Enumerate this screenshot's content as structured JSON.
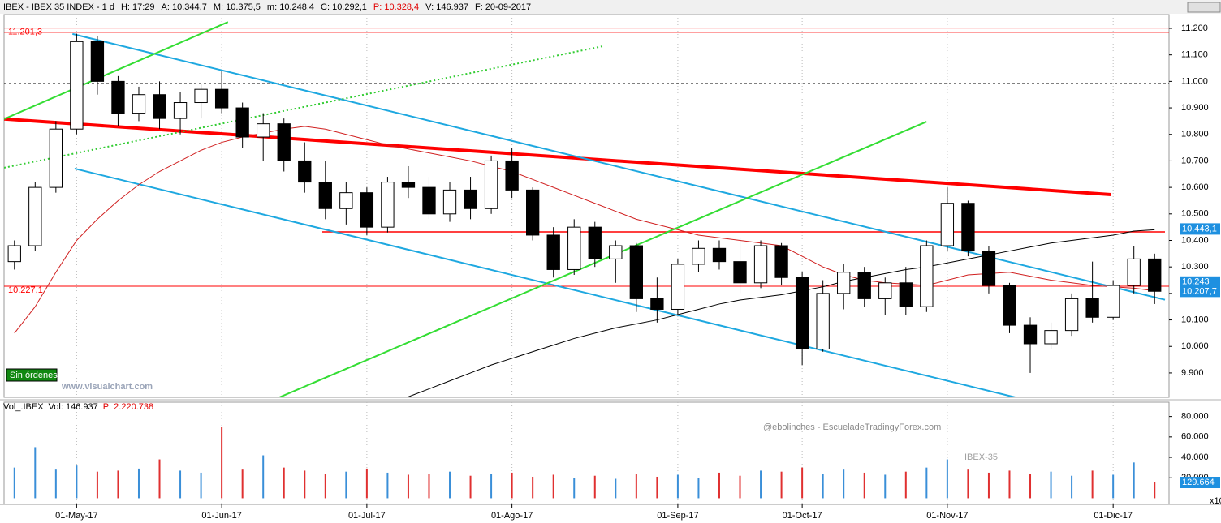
{
  "chart_data": {
    "type": "candlestick",
    "header": [
      "IBEX - IBEX 35 INDEX - 1 d",
      "H: 17:29",
      "A: 10.344,7",
      "M: 10.375,5",
      "m: 10.248,4",
      "C: 10.292,1",
      "P: 10.328,4",
      "V: 146.937",
      "F: 20-09-2017"
    ],
    "header_highlight": 6,
    "volume_header": [
      "Vol_.IBEX",
      "Vol: 146.937",
      "P: 2.220.738"
    ],
    "watermarks": [
      "@ebolinches - EscueladeTradingyForex.com",
      "IBEX-35",
      "www.visualchart.com"
    ],
    "status": "Sin órdenes",
    "volume_factor": "x10",
    "volume_last_label": "129.664",
    "categories": [
      null,
      null,
      null,
      "01-May-17",
      null,
      null,
      null,
      null,
      null,
      null,
      "01-Jun-17",
      null,
      null,
      null,
      null,
      null,
      null,
      "01-Jul-17",
      null,
      null,
      null,
      null,
      null,
      null,
      "01-Ago-17",
      null,
      null,
      null,
      null,
      null,
      null,
      null,
      "01-Sep-17",
      null,
      null,
      null,
      null,
      null,
      "01-Oct-17",
      null,
      null,
      null,
      null,
      null,
      null,
      "01-Nov-17",
      null,
      null,
      null,
      null,
      null,
      null,
      null,
      "01-Dic-17",
      null,
      null
    ],
    "open": [
      10320,
      10380,
      10600,
      10820,
      11150,
      11000,
      10880,
      10950,
      10860,
      10920,
      10970,
      10900,
      10790,
      10840,
      10700,
      10620,
      10520,
      10580,
      10450,
      10620,
      10600,
      10500,
      10590,
      10520,
      10700,
      10590,
      10420,
      10290,
      10450,
      10330,
      10380,
      10180,
      10140,
      10310,
      10370,
      10320,
      10240,
      10380,
      10260,
      9990,
      10200,
      10280,
      10180,
      10240,
      10150,
      10380,
      10540,
      10360,
      10230,
      10080,
      10010,
      10060,
      10180,
      10110,
      10230,
      10330
    ],
    "high": [
      10400,
      10620,
      10850,
      11180,
      11170,
      11020,
      10980,
      11000,
      10960,
      10990,
      11040,
      10920,
      10880,
      10860,
      10770,
      10700,
      10620,
      10600,
      10640,
      10680,
      10640,
      10620,
      10640,
      10720,
      10750,
      10600,
      10450,
      10480,
      10470,
      10400,
      10390,
      10260,
      10330,
      10400,
      10400,
      10410,
      10400,
      10390,
      10280,
      10250,
      10310,
      10300,
      10260,
      10300,
      10400,
      10600,
      10550,
      10380,
      10240,
      10110,
      10090,
      10200,
      10320,
      10250,
      10380,
      10350
    ],
    "low": [
      10290,
      10360,
      10580,
      10800,
      10950,
      10830,
      10850,
      10820,
      10800,
      10860,
      10880,
      10750,
      10700,
      10660,
      10580,
      10480,
      10460,
      10420,
      10430,
      10560,
      10480,
      10470,
      10480,
      10500,
      10560,
      10400,
      10260,
      10270,
      10300,
      10240,
      10130,
      10090,
      10120,
      10280,
      10290,
      10200,
      10220,
      10230,
      9930,
      9980,
      10140,
      10150,
      10120,
      10120,
      10130,
      10360,
      10340,
      10200,
      10050,
      9900,
      9990,
      10040,
      10090,
      10100,
      10200,
      10160
    ],
    "close": [
      10380,
      10600,
      10820,
      11150,
      11000,
      10880,
      10950,
      10860,
      10920,
      10970,
      10900,
      10790,
      10840,
      10700,
      10620,
      10520,
      10580,
      10450,
      10620,
      10600,
      10500,
      10590,
      10520,
      10700,
      10590,
      10420,
      10290,
      10450,
      10330,
      10380,
      10180,
      10140,
      10310,
      10370,
      10320,
      10240,
      10380,
      10260,
      9990,
      10200,
      10280,
      10180,
      10240,
      10150,
      10380,
      10540,
      10360,
      10230,
      10080,
      10010,
      10060,
      10180,
      10110,
      10230,
      10330,
      10208
    ],
    "volume": [
      30000,
      50000,
      28000,
      32000,
      26000,
      27000,
      29000,
      38000,
      27000,
      25000,
      70000,
      28000,
      42000,
      30000,
      27000,
      24000,
      26000,
      29000,
      25000,
      23000,
      24000,
      26000,
      22000,
      24000,
      25000,
      21000,
      23000,
      20000,
      22000,
      19000,
      24000,
      21000,
      23000,
      20000,
      25000,
      22000,
      27000,
      26000,
      30000,
      24000,
      28000,
      25000,
      23000,
      26000,
      30000,
      38000,
      28000,
      25000,
      27000,
      24000,
      26000,
      22000,
      27000,
      23000,
      35000,
      16000
    ],
    "up_color": "#ffffff",
    "down_color": "#000000",
    "vol_up_color": "#3a8fd8",
    "vol_down_color": "#e03030",
    "averages": [
      {
        "color": "#d02020",
        "values": [
          10050,
          10150,
          10280,
          10400,
          10480,
          10550,
          10610,
          10660,
          10700,
          10740,
          10770,
          10790,
          10805,
          10820,
          10830,
          10820,
          10800,
          10780,
          10760,
          10745,
          10730,
          10715,
          10700,
          10680,
          10660,
          10630,
          10600,
          10570,
          10540,
          10510,
          10480,
          10460,
          10440,
          10420,
          10410,
          10400,
          10390,
          10380,
          10340,
          10300,
          10270,
          10250,
          10240,
          10235,
          10230,
          10250,
          10270,
          10275,
          10280,
          10265,
          10250,
          10240,
          10230,
          10225,
          10220,
          10210
        ]
      },
      {
        "color": "#000000",
        "values": [
          null,
          null,
          null,
          null,
          null,
          null,
          null,
          null,
          null,
          null,
          null,
          null,
          null,
          null,
          null,
          null,
          null,
          null,
          null,
          9810,
          9840,
          9870,
          9900,
          9930,
          9955,
          9980,
          10005,
          10030,
          10050,
          10070,
          10085,
          10100,
          10120,
          10140,
          10160,
          10175,
          10185,
          10195,
          10210,
          10225,
          10245,
          10260,
          10275,
          10290,
          10300,
          10315,
          10330,
          10345,
          10360,
          10375,
          10390,
          10400,
          10410,
          10420,
          10435,
          10440
        ]
      }
    ],
    "trendlines": [
      {
        "color": "#ff0000",
        "width": 4,
        "x": [
          -0.5,
          52.9
        ],
        "y": [
          10858,
          10573
        ]
      },
      {
        "color": "#ff0000",
        "width": 1.5,
        "x": [
          14.85,
          55.5
        ],
        "y": [
          10432,
          10432
        ]
      },
      {
        "color": "#1ea8e0",
        "width": 2,
        "x": [
          2.8,
          55.5
        ],
        "y": [
          11179,
          10176
        ]
      },
      {
        "color": "#1ea8e0",
        "width": 2,
        "x": [
          2.9,
          48.6
        ],
        "y": [
          10671,
          9802
        ]
      },
      {
        "color": "#33dd33",
        "width": 2,
        "x": [
          -0.5,
          10.3
        ],
        "y": [
          10858,
          11224
        ]
      },
      {
        "color": "#33cc33",
        "width": 2,
        "dash": true,
        "x": [
          -0.5,
          28.4
        ],
        "y": [
          10674,
          11133
        ]
      },
      {
        "color": "#33dd33",
        "width": 2,
        "x": [
          12.6,
          44
        ],
        "y": [
          9802,
          10848
        ]
      }
    ],
    "hlines": [
      {
        "value": 11201.3,
        "label": "11.201,3",
        "color": "#ff0000"
      },
      {
        "value": 11185,
        "color": "#ff0000"
      },
      {
        "value": 10227.1,
        "label": "10.227,1",
        "color": "#ff0000"
      },
      {
        "value": 10992,
        "color": "#000000",
        "dash": true
      }
    ],
    "markers": [
      {
        "value": 10443.1,
        "label": "10.443,1"
      },
      {
        "value": 10243,
        "label": "10.243"
      },
      {
        "value": 10207.7,
        "label": "10.207,7"
      }
    ],
    "ylim": [
      9808,
      11252
    ],
    "yticks": [
      {
        "value": 9900,
        "label": "9.900"
      },
      {
        "value": 10000,
        "label": "10.000"
      },
      {
        "value": 10100,
        "label": "10.100"
      },
      {
        "value": 10200,
        "label": "10.200"
      },
      {
        "value": 10300,
        "label": "10.300"
      },
      {
        "value": 10400,
        "label": "10.400"
      },
      {
        "value": 10500,
        "label": "10.500"
      },
      {
        "value": 10600,
        "label": "10.600"
      },
      {
        "value": 10700,
        "label": "10.700"
      },
      {
        "value": 10800,
        "label": "10.800"
      },
      {
        "value": 10900,
        "label": "10.900"
      },
      {
        "value": 11000,
        "label": "11.000"
      },
      {
        "value": 11100,
        "label": "11.100"
      },
      {
        "value": 11200,
        "label": "11.200"
      }
    ],
    "vlim": [
      -6000,
      94000
    ],
    "vticks": [
      {
        "value": 20000,
        "label": "20.000"
      },
      {
        "value": 40000,
        "label": "40.000"
      },
      {
        "value": 60000,
        "label": "60.000"
      },
      {
        "value": 80000,
        "label": "80.000"
      }
    ]
  }
}
